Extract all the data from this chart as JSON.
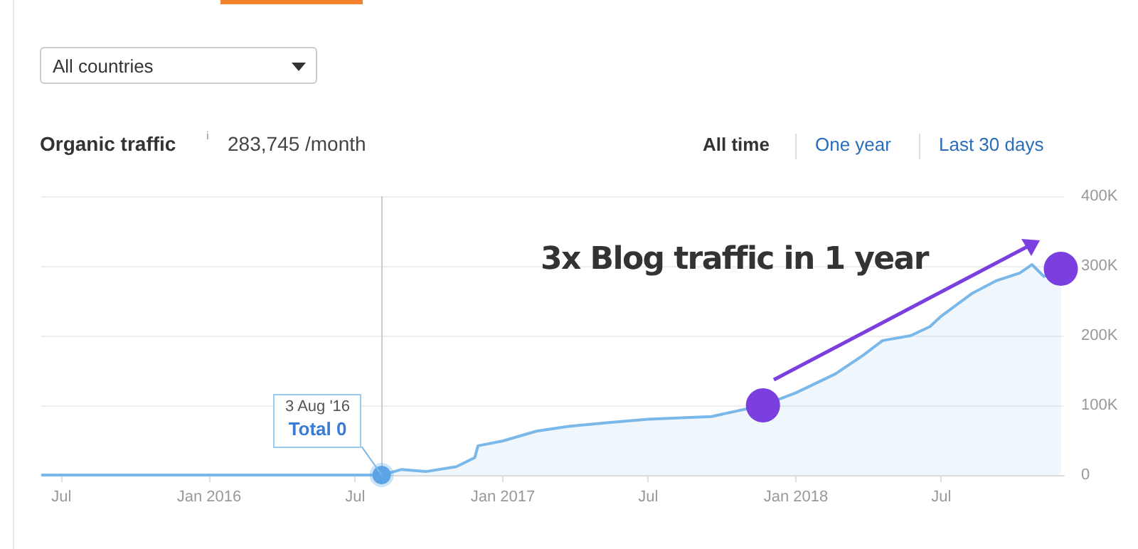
{
  "chart_data": {
    "type": "area",
    "title": "Organic traffic",
    "subtitle": "283,745 /month",
    "annotations": [
      "All countries",
      "All time",
      "One year",
      "Last 30 days",
      "3 Aug '16",
      {
        "text": "Total 0",
        "x": "2016-08-03",
        "y": 0
      },
      "3x Blog traffic in 1 year",
      "i"
    ],
    "xlim": [
      "2015-06-06",
      "2018-12-01"
    ],
    "xticks": [
      {
        "value": "2015-07-01",
        "label": "Jul"
      },
      {
        "value": "2016-01-01",
        "label": "Jan 2016"
      },
      {
        "value": "2016-07-01",
        "label": "Jul"
      },
      {
        "value": "2017-01-01",
        "label": "Jan 2017"
      },
      {
        "value": "2017-07-01",
        "label": "Jul"
      },
      {
        "value": "2018-01-01",
        "label": "Jan 2018"
      },
      {
        "value": "2018-07-01",
        "label": "Jul"
      }
    ],
    "ylim": [
      0,
      400000
    ],
    "yticks": [
      {
        "value": 0,
        "label": "0"
      },
      {
        "value": 100000,
        "label": "100K"
      },
      {
        "value": 200000,
        "label": "200K"
      },
      {
        "value": 300000,
        "label": "300K"
      },
      {
        "value": 400000,
        "label": "400K"
      }
    ],
    "grid": "y",
    "marker": "none",
    "ref_lines": [
      {
        "axis": "x",
        "value": "2016-08-03",
        "color": "#cccccc"
      }
    ],
    "series": [
      {
        "color": "#7ab8ea",
        "x": [
          "2015-06-06",
          "2016-08-03",
          "2016-08-28",
          "2016-09-27",
          "2016-11-04",
          "2016-11-27",
          "2016-12-01",
          "2017-01-01",
          "2017-02-12",
          "2017-03-24",
          "2017-05-10",
          "2017-07-01",
          "2017-09-18",
          "2017-11-21",
          "2018-01-01",
          "2018-02-19",
          "2018-03-26",
          "2018-04-19",
          "2018-05-24",
          "2018-06-17",
          "2018-07-01",
          "2018-08-09",
          "2018-09-08",
          "2018-10-07",
          "2018-10-22",
          "2018-11-06",
          "2018-11-27"
        ],
        "values": [
          0,
          0,
          8000,
          5000,
          12000,
          25000,
          42000,
          49000,
          63000,
          70000,
          75000,
          80000,
          84000,
          100000,
          118000,
          145000,
          172000,
          193000,
          200000,
          213000,
          228000,
          261000,
          279000,
          290000,
          302000,
          285000,
          296000
        ]
      },
      {
        "type": "scatter",
        "marker": "circle",
        "color": "#7b3fe0",
        "x": [
          "2017-11-21",
          "2018-11-27"
        ],
        "values": [
          100000,
          296000
        ]
      },
      {
        "type": "scatter",
        "marker": "circle",
        "color": "#5ba4e6",
        "x": [
          "2016-08-03"
        ],
        "values": [
          0
        ]
      }
    ]
  }
}
